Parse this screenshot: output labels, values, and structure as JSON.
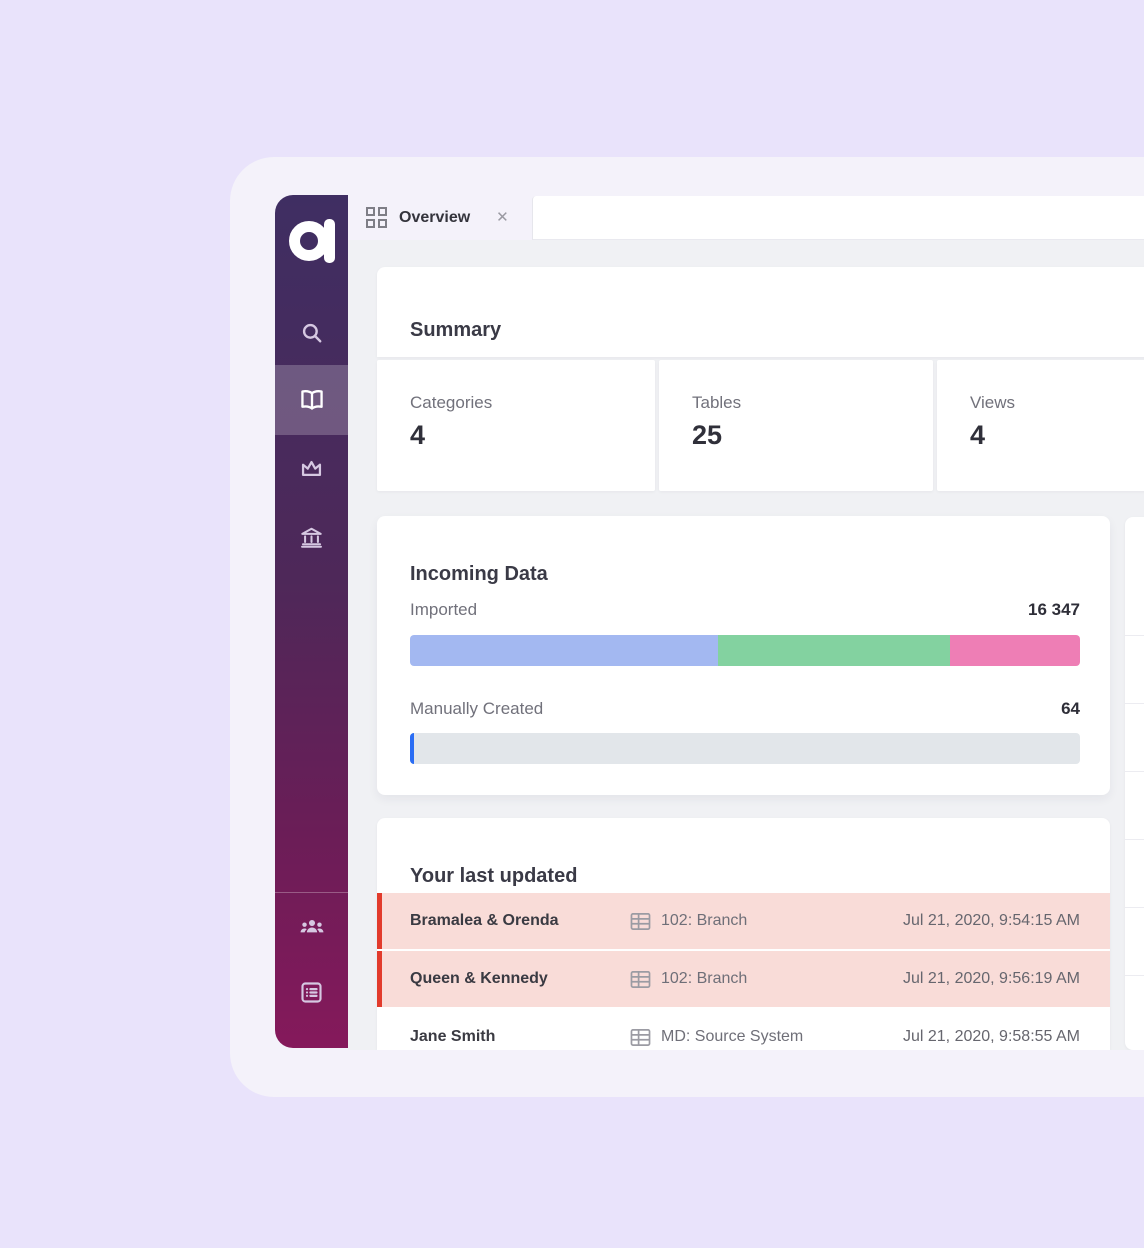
{
  "app": {
    "logo_letter": "a",
    "colors": {
      "page_background": "#e9e3fb",
      "shell_background": "#f4f2fa",
      "content_background": "#f0f1f4",
      "sidebar_gradient_top": "#3f2e62",
      "sidebar_gradient_bottom": "#85195b",
      "accent_red": "#e23b2c",
      "row_highlight_pink": "#f9dcd8",
      "bar_blue": "#a3b8f1",
      "bar_green": "#83d2a0",
      "bar_pink": "#ee7eb5",
      "bar_manual_blue": "#2a6df4",
      "bar_track_gray": "#e2e6ea"
    }
  },
  "sidebar": {
    "items": [
      {
        "name": "search",
        "active": false
      },
      {
        "name": "catalog-book",
        "active": true
      },
      {
        "name": "favorites-crown",
        "active": false
      },
      {
        "name": "sources-bank",
        "active": false
      },
      {
        "name": "community-people",
        "active": false
      },
      {
        "name": "lists",
        "active": false
      },
      {
        "name": "clipped-item",
        "active": false
      }
    ]
  },
  "tabs": {
    "active_label": "Overview",
    "close_glyph": "✕"
  },
  "summary": {
    "title": "Summary",
    "stats": [
      {
        "label": "Categories",
        "value": "4"
      },
      {
        "label": "Tables",
        "value": "25"
      },
      {
        "label": "Views",
        "value": "4"
      }
    ]
  },
  "incoming_data": {
    "title": "Incoming Data",
    "bars": [
      {
        "label": "Imported",
        "value": "16 347",
        "segments": [
          {
            "color": "#a3b8f1",
            "pct": 46.0
          },
          {
            "color": "#83d2a0",
            "pct": 34.6
          },
          {
            "color": "#ee7eb5",
            "pct": 19.4
          }
        ]
      },
      {
        "label": "Manually Created",
        "value": "64",
        "segments": [
          {
            "color": "#2a6df4",
            "pct": 0.6
          }
        ]
      }
    ]
  },
  "last_updated": {
    "title": "Your last updated",
    "rows": [
      {
        "name": "Bramalea & Orenda",
        "object": "102: Branch",
        "date": "Jul 21, 2020, 9:54:15 AM",
        "highlighted": true
      },
      {
        "name": "Queen & Kennedy",
        "object": "102: Branch",
        "date": "Jul 21, 2020, 9:56:19 AM",
        "highlighted": true
      },
      {
        "name": "Jane Smith",
        "object": "MD: Source System",
        "date": "Jul 21, 2020, 9:58:55 AM",
        "highlighted": false
      }
    ]
  }
}
